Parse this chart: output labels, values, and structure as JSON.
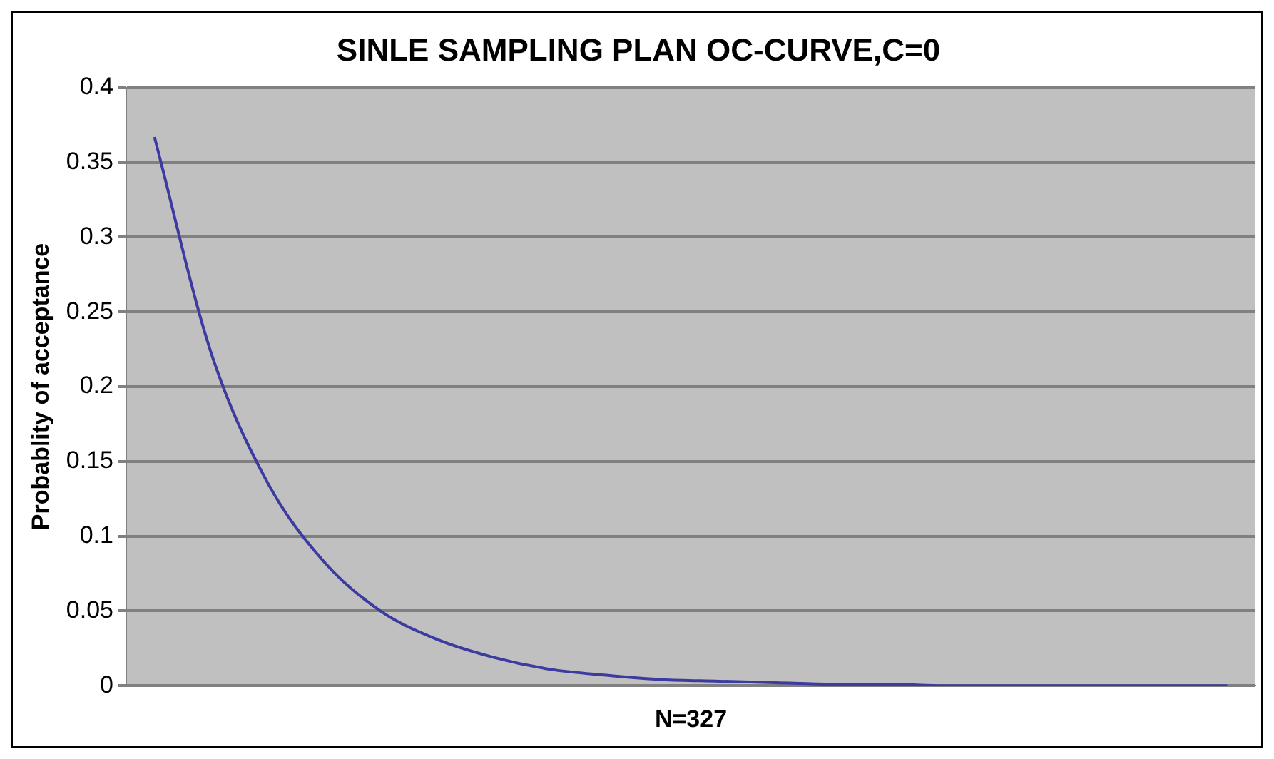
{
  "chart_data": {
    "type": "line",
    "title": "SINLE SAMPLING PLAN OC-CURVE,C=0",
    "xlabel": "N=327",
    "ylabel": "Probablity of acceptance",
    "categories": [
      null,
      null,
      null,
      null,
      null,
      null,
      null,
      null,
      null,
      null,
      null,
      null,
      null,
      null,
      null,
      null,
      null,
      null,
      null,
      null
    ],
    "series": [
      {
        "color": "#3c3ca0",
        "values": [
          0.367,
          0.223,
          0.136,
          0.083,
          0.05,
          0.031,
          0.019,
          0.011,
          0.007,
          0.004,
          0.003,
          0.002,
          0.001,
          0.001,
          0,
          0,
          0,
          0,
          0,
          0
        ]
      }
    ],
    "ylim": [
      0,
      0.4
    ],
    "yticks": [
      0,
      0.05,
      0.1,
      0.15,
      0.2,
      0.25,
      0.3,
      0.35,
      0.4
    ],
    "grid": "y",
    "legend": false,
    "marker": "none",
    "line_style": "solid",
    "tick_labels": "y"
  }
}
